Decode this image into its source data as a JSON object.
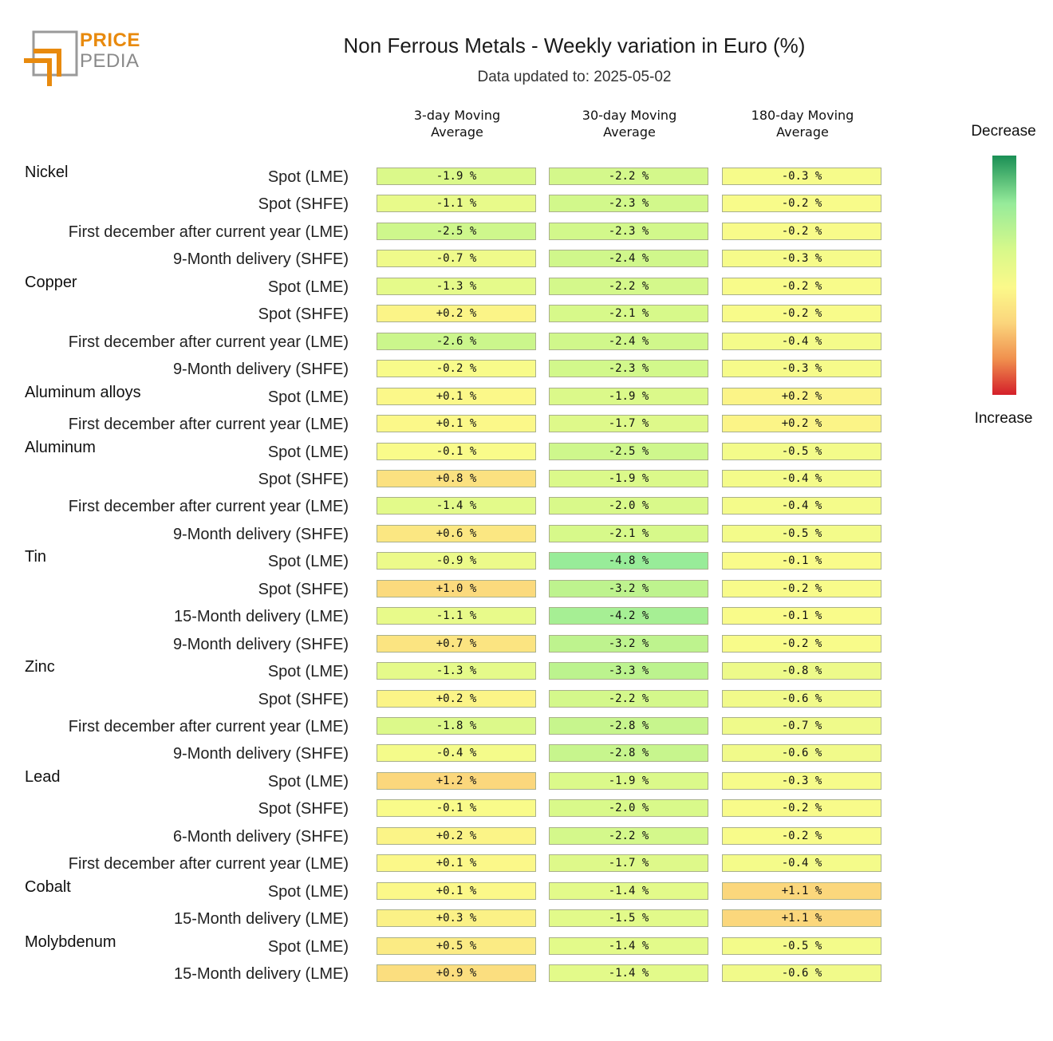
{
  "logo": {
    "line1": "PRICE",
    "line2": "PEDIA"
  },
  "colors": {
    "decrease": "#1a8f55",
    "neutral": "#fbf98a",
    "increase": "#d41f2a"
  },
  "chart_data": {
    "type": "table",
    "title": "Non Ferrous Metals - Weekly variation in Euro (%)",
    "subtitle": "Data updated to: 2025-05-02",
    "columns": [
      {
        "line1": "3-day Moving",
        "line2": "Average"
      },
      {
        "line1": "30-day Moving",
        "line2": "Average"
      },
      {
        "line1": "180-day Moving",
        "line2": "Average"
      }
    ],
    "legend": {
      "top": "Decrease",
      "bottom": "Increase"
    },
    "groups": [
      {
        "name": "Nickel",
        "rows": [
          {
            "label": "Spot (LME)",
            "values": [
              "-1.9 %",
              "-2.2 %",
              "-0.3 %"
            ]
          },
          {
            "label": "Spot (SHFE)",
            "values": [
              "-1.1 %",
              "-2.3 %",
              "-0.2 %"
            ]
          },
          {
            "label": "First december after current year (LME)",
            "values": [
              "-2.5 %",
              "-2.3 %",
              "-0.2 %"
            ]
          },
          {
            "label": "9-Month delivery (SHFE)",
            "values": [
              "-0.7 %",
              "-2.4 %",
              "-0.3 %"
            ]
          }
        ]
      },
      {
        "name": "Copper",
        "rows": [
          {
            "label": "Spot (LME)",
            "values": [
              "-1.3 %",
              "-2.2 %",
              "-0.2 %"
            ]
          },
          {
            "label": "Spot (SHFE)",
            "values": [
              "+0.2 %",
              "-2.1 %",
              "-0.2 %"
            ]
          },
          {
            "label": "First december after current year (LME)",
            "values": [
              "-2.6 %",
              "-2.4 %",
              "-0.4 %"
            ]
          },
          {
            "label": "9-Month delivery (SHFE)",
            "values": [
              "-0.2 %",
              "-2.3 %",
              "-0.3 %"
            ]
          }
        ]
      },
      {
        "name": "Aluminum alloys",
        "rows": [
          {
            "label": "Spot (LME)",
            "values": [
              "+0.1 %",
              "-1.9 %",
              "+0.2 %"
            ]
          },
          {
            "label": "First december after current year (LME)",
            "values": [
              "+0.1 %",
              "-1.7 %",
              "+0.2 %"
            ]
          }
        ]
      },
      {
        "name": "Aluminum",
        "rows": [
          {
            "label": "Spot (LME)",
            "values": [
              "-0.1 %",
              "-2.5 %",
              "-0.5 %"
            ]
          },
          {
            "label": "Spot (SHFE)",
            "values": [
              "+0.8 %",
              "-1.9 %",
              "-0.4 %"
            ]
          },
          {
            "label": "First december after current year (LME)",
            "values": [
              "-1.4 %",
              "-2.0 %",
              "-0.4 %"
            ]
          },
          {
            "label": "9-Month delivery (SHFE)",
            "values": [
              "+0.6 %",
              "-2.1 %",
              "-0.5 %"
            ]
          }
        ]
      },
      {
        "name": "Tin",
        "rows": [
          {
            "label": "Spot (LME)",
            "values": [
              "-0.9 %",
              "-4.8 %",
              "-0.1 %"
            ]
          },
          {
            "label": "Spot (SHFE)",
            "values": [
              "+1.0 %",
              "-3.2 %",
              "-0.2 %"
            ]
          },
          {
            "label": "15-Month delivery (LME)",
            "values": [
              "-1.1 %",
              "-4.2 %",
              "-0.1 %"
            ]
          },
          {
            "label": "9-Month delivery (SHFE)",
            "values": [
              "+0.7 %",
              "-3.2 %",
              "-0.2 %"
            ]
          }
        ]
      },
      {
        "name": "Zinc",
        "rows": [
          {
            "label": "Spot (LME)",
            "values": [
              "-1.3 %",
              "-3.3 %",
              "-0.8 %"
            ]
          },
          {
            "label": "Spot (SHFE)",
            "values": [
              "+0.2 %",
              "-2.2 %",
              "-0.6 %"
            ]
          },
          {
            "label": "First december after current year (LME)",
            "values": [
              "-1.8 %",
              "-2.8 %",
              "-0.7 %"
            ]
          },
          {
            "label": "9-Month delivery (SHFE)",
            "values": [
              "-0.4 %",
              "-2.8 %",
              "-0.6 %"
            ]
          }
        ]
      },
      {
        "name": "Lead",
        "rows": [
          {
            "label": "Spot (LME)",
            "values": [
              "+1.2 %",
              "-1.9 %",
              "-0.3 %"
            ]
          },
          {
            "label": "Spot (SHFE)",
            "values": [
              "-0.1 %",
              "-2.0 %",
              "-0.2 %"
            ]
          },
          {
            "label": "6-Month delivery (SHFE)",
            "values": [
              "+0.2 %",
              "-2.2 %",
              "-0.2 %"
            ]
          },
          {
            "label": "First december after current year (LME)",
            "values": [
              "+0.1 %",
              "-1.7 %",
              "-0.4 %"
            ]
          }
        ]
      },
      {
        "name": "Cobalt",
        "rows": [
          {
            "label": "Spot (LME)",
            "values": [
              "+0.1 %",
              "-1.4 %",
              "+1.1 %"
            ]
          },
          {
            "label": "15-Month delivery (LME)",
            "values": [
              "+0.3 %",
              "-1.5 %",
              "+1.1 %"
            ]
          }
        ]
      },
      {
        "name": "Molybdenum",
        "rows": [
          {
            "label": "Spot (LME)",
            "values": [
              "+0.5 %",
              "-1.4 %",
              "-0.5 %"
            ]
          },
          {
            "label": "15-Month delivery (LME)",
            "values": [
              "+0.9 %",
              "-1.4 %",
              "-0.6 %"
            ]
          }
        ]
      }
    ]
  }
}
